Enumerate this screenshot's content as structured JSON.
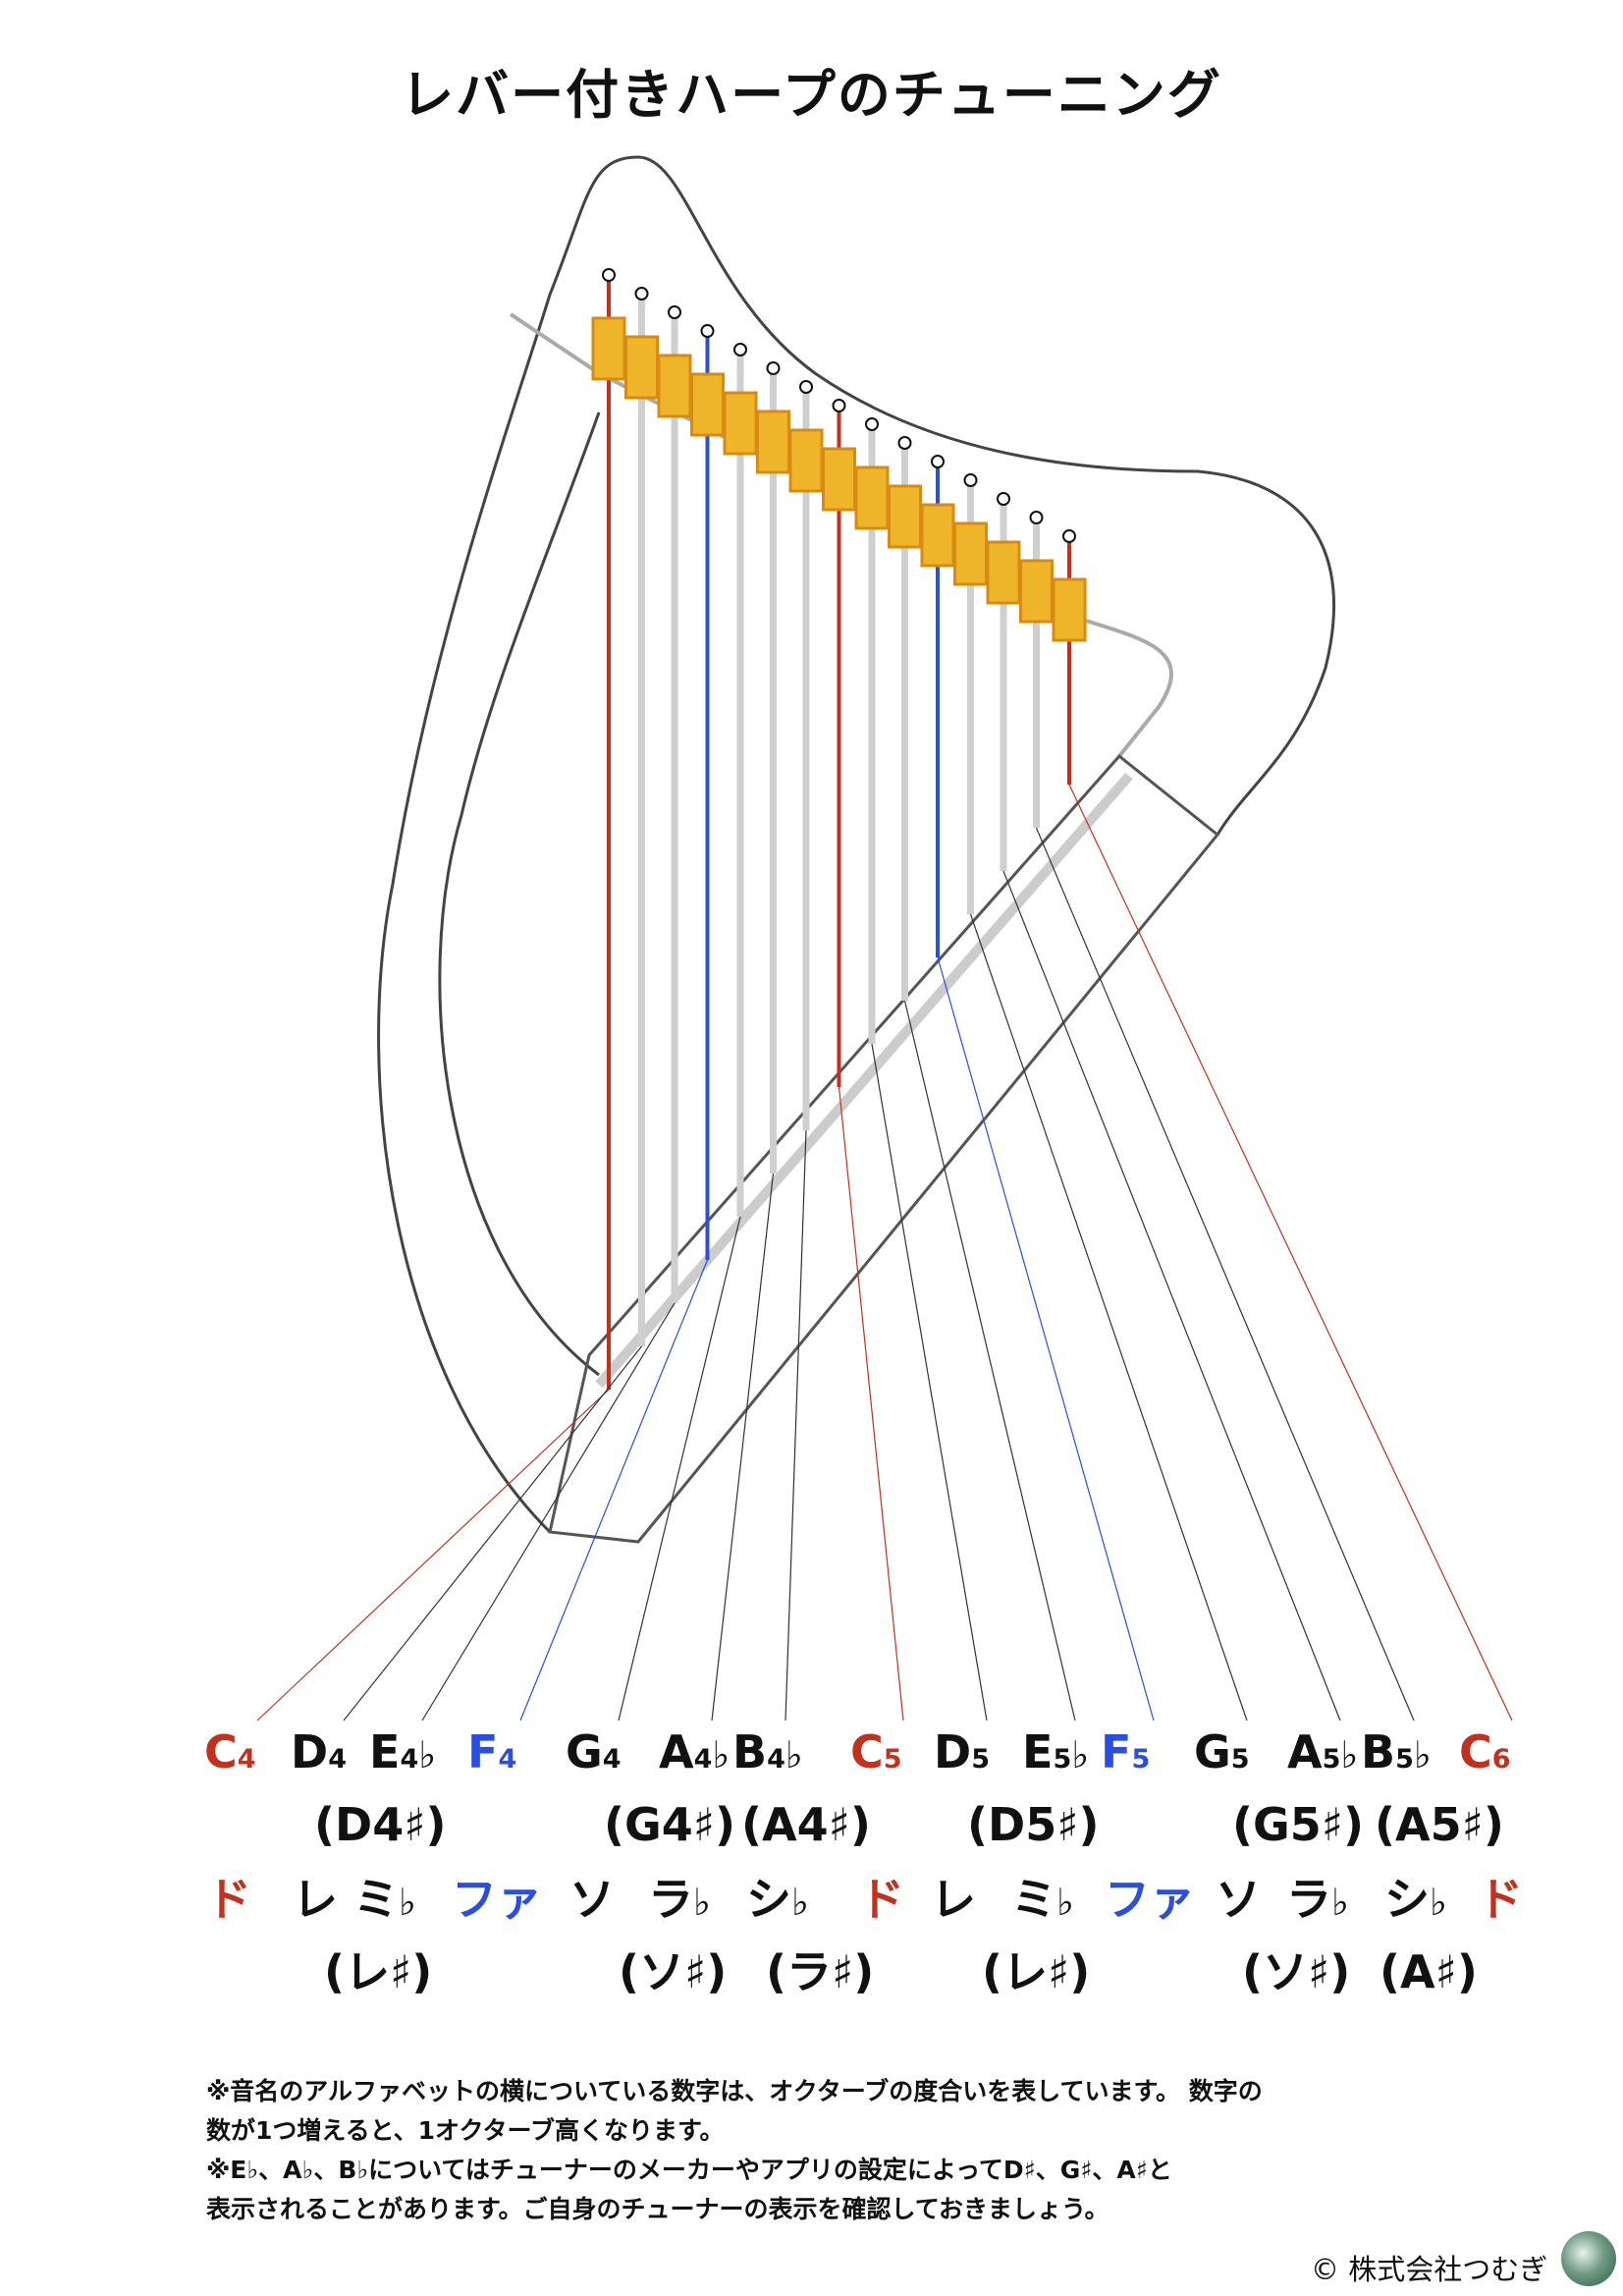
{
  "title": "レバー付きハープのチューニング",
  "colors": {
    "red": "#c0311e",
    "blue": "#2a4ee0",
    "black": "#111111",
    "lever": "#eeb52b",
    "lever_edge": "#d98a12"
  },
  "strings": [
    {
      "id": "C4",
      "color": "red"
    },
    {
      "id": "D4",
      "color": "gray"
    },
    {
      "id": "E4b",
      "color": "gray"
    },
    {
      "id": "F4",
      "color": "blue"
    },
    {
      "id": "G4",
      "color": "gray"
    },
    {
      "id": "A4b",
      "color": "gray"
    },
    {
      "id": "B4b",
      "color": "gray"
    },
    {
      "id": "C5",
      "color": "red"
    },
    {
      "id": "D5",
      "color": "gray"
    },
    {
      "id": "E5b",
      "color": "gray"
    },
    {
      "id": "F5",
      "color": "blue"
    },
    {
      "id": "G5",
      "color": "gray"
    },
    {
      "id": "A5b",
      "color": "gray"
    },
    {
      "id": "B5b",
      "color": "gray"
    },
    {
      "id": "C6",
      "color": "red"
    }
  ],
  "rows": {
    "letters": [
      {
        "main": "C",
        "sub": "4",
        "acc": "",
        "color": "red"
      },
      {
        "main": "D",
        "sub": "4",
        "acc": "",
        "color": "black"
      },
      {
        "main": "E",
        "sub": "4",
        "acc": "♭",
        "color": "black"
      },
      {
        "main": "F",
        "sub": "4",
        "acc": "",
        "color": "blue"
      },
      {
        "main": "G",
        "sub": "4",
        "acc": "",
        "color": "black"
      },
      {
        "main": "A",
        "sub": "4",
        "acc": "♭",
        "color": "black"
      },
      {
        "main": "B",
        "sub": "4",
        "acc": "♭",
        "color": "black"
      },
      {
        "main": "C",
        "sub": "5",
        "acc": "",
        "color": "red"
      },
      {
        "main": "D",
        "sub": "5",
        "acc": "",
        "color": "black"
      },
      {
        "main": "E",
        "sub": "5",
        "acc": "♭",
        "color": "black"
      },
      {
        "main": "F",
        "sub": "5",
        "acc": "",
        "color": "blue"
      },
      {
        "main": "G",
        "sub": "5",
        "acc": "",
        "color": "black"
      },
      {
        "main": "A",
        "sub": "5",
        "acc": "♭",
        "color": "black"
      },
      {
        "main": "B",
        "sub": "5",
        "acc": "♭",
        "color": "black"
      },
      {
        "main": "C",
        "sub": "6",
        "acc": "",
        "color": "red"
      }
    ],
    "letter_alts": [
      {
        "text": "(D4♯)",
        "note": "D",
        "sub": "4",
        "pos": 2
      },
      {
        "text": "(G4♯)",
        "note": "G",
        "sub": "4",
        "pos": 5
      },
      {
        "text": "(A4♯)",
        "note": "A",
        "sub": "4",
        "pos": 6
      },
      {
        "text": "(D5♯)",
        "note": "D",
        "sub": "5",
        "pos": 9
      },
      {
        "text": "(G5♯)",
        "note": "G",
        "sub": "5",
        "pos": 12
      },
      {
        "text": "(A5♯)",
        "note": "A",
        "sub": "5",
        "pos": 13
      }
    ],
    "solfege": [
      {
        "text": "ド",
        "acc": "",
        "color": "red"
      },
      {
        "text": "レ",
        "acc": "",
        "color": "black"
      },
      {
        "text": "ミ",
        "acc": "♭",
        "color": "black"
      },
      {
        "text": "ファ",
        "acc": "",
        "color": "blue"
      },
      {
        "text": "ソ",
        "acc": "",
        "color": "black"
      },
      {
        "text": "ラ",
        "acc": "♭",
        "color": "black"
      },
      {
        "text": "シ",
        "acc": "♭",
        "color": "black"
      },
      {
        "text": "ド",
        "acc": "",
        "color": "red"
      },
      {
        "text": "レ",
        "acc": "",
        "color": "black"
      },
      {
        "text": "ミ",
        "acc": "♭",
        "color": "black"
      },
      {
        "text": "ファ",
        "acc": "",
        "color": "blue"
      },
      {
        "text": "ソ",
        "acc": "",
        "color": "black"
      },
      {
        "text": "ラ",
        "acc": "♭",
        "color": "black"
      },
      {
        "text": "シ",
        "acc": "♭",
        "color": "black"
      },
      {
        "text": "ド",
        "acc": "",
        "color": "red"
      }
    ],
    "solfege_alts": [
      {
        "text": "(レ♯)",
        "pos": 2
      },
      {
        "text": "(ソ♯)",
        "pos": 5
      },
      {
        "text": "(ラ♯)",
        "pos": 6
      },
      {
        "text": "(レ♯)",
        "pos": 9
      },
      {
        "text": "(ソ♯)",
        "pos": 12
      },
      {
        "text": "(A♯)",
        "pos": 13
      }
    ]
  },
  "notes": [
    "※音名のアルファベットの横についている数字は、オクターブの度合いを表しています。 数字の",
    "数が1つ増えると、1オクターブ高くなります。",
    "※E♭、A♭、B♭についてはチューナーのメーカーやアプリの設定によってD♯、G♯、A♯と",
    "表示されることがあります。ご自身のチューナーの表示を確認しておきましょう。"
  ],
  "copyright": "© 株式会社つむぎ"
}
